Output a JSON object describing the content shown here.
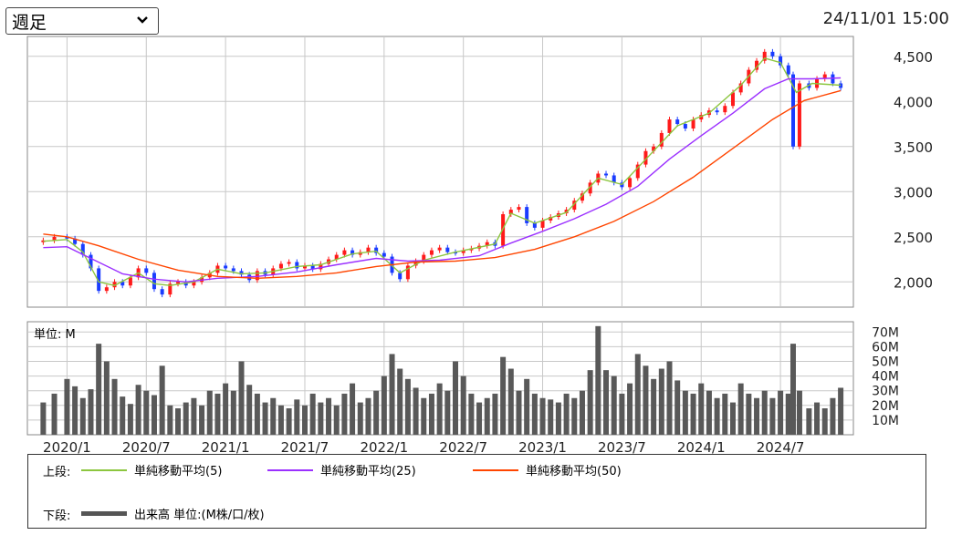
{
  "header": {
    "period_select": "週足",
    "timestamp": "24/11/01 15:00"
  },
  "chart_data": [
    {
      "type": "candlestick",
      "name": "price",
      "yticks": [
        "4,500",
        "4,000",
        "3,500",
        "3,000",
        "2,500",
        "2,000"
      ],
      "yvalues": [
        4500,
        4000,
        3500,
        3000,
        2500,
        2000
      ],
      "ylim": [
        1720,
        4720
      ],
      "xlim": [
        2019.75,
        2024.96
      ],
      "grid": true,
      "close": [
        [
          2019.85,
          2460
        ],
        [
          2019.92,
          2500
        ],
        [
          2020.0,
          2480
        ],
        [
          2020.05,
          2420
        ],
        [
          2020.1,
          2300
        ],
        [
          2020.15,
          2150
        ],
        [
          2020.2,
          1900
        ],
        [
          2020.25,
          1940
        ],
        [
          2020.3,
          2000
        ],
        [
          2020.35,
          1960
        ],
        [
          2020.4,
          2050
        ],
        [
          2020.45,
          2150
        ],
        [
          2020.5,
          2100
        ],
        [
          2020.55,
          1920
        ],
        [
          2020.6,
          1860
        ],
        [
          2020.65,
          1980
        ],
        [
          2020.7,
          2000
        ],
        [
          2020.75,
          1960
        ],
        [
          2020.8,
          2000
        ],
        [
          2020.85,
          2050
        ],
        [
          2020.9,
          2100
        ],
        [
          2020.95,
          2180
        ],
        [
          2021.0,
          2150
        ],
        [
          2021.05,
          2120
        ],
        [
          2021.1,
          2080
        ],
        [
          2021.15,
          2020
        ],
        [
          2021.2,
          2120
        ],
        [
          2021.25,
          2080
        ],
        [
          2021.3,
          2150
        ],
        [
          2021.35,
          2200
        ],
        [
          2021.4,
          2220
        ],
        [
          2021.45,
          2150
        ],
        [
          2021.5,
          2180
        ],
        [
          2021.55,
          2140
        ],
        [
          2021.6,
          2200
        ],
        [
          2021.65,
          2250
        ],
        [
          2021.7,
          2300
        ],
        [
          2021.75,
          2350
        ],
        [
          2021.8,
          2300
        ],
        [
          2021.85,
          2330
        ],
        [
          2021.9,
          2380
        ],
        [
          2021.95,
          2320
        ],
        [
          2022.0,
          2280
        ],
        [
          2022.05,
          2100
        ],
        [
          2022.1,
          2030
        ],
        [
          2022.15,
          2180
        ],
        [
          2022.2,
          2230
        ],
        [
          2022.25,
          2300
        ],
        [
          2022.3,
          2350
        ],
        [
          2022.35,
          2380
        ],
        [
          2022.4,
          2330
        ],
        [
          2022.45,
          2320
        ],
        [
          2022.5,
          2350
        ],
        [
          2022.55,
          2370
        ],
        [
          2022.6,
          2400
        ],
        [
          2022.65,
          2440
        ],
        [
          2022.7,
          2400
        ],
        [
          2022.75,
          2750
        ],
        [
          2022.8,
          2800
        ],
        [
          2022.85,
          2830
        ],
        [
          2022.9,
          2650
        ],
        [
          2022.95,
          2600
        ],
        [
          2023.0,
          2680
        ],
        [
          2023.05,
          2720
        ],
        [
          2023.1,
          2760
        ],
        [
          2023.15,
          2800
        ],
        [
          2023.2,
          2900
        ],
        [
          2023.25,
          2980
        ],
        [
          2023.3,
          3100
        ],
        [
          2023.35,
          3200
        ],
        [
          2023.4,
          3180
        ],
        [
          2023.45,
          3100
        ],
        [
          2023.5,
          3050
        ],
        [
          2023.55,
          3150
        ],
        [
          2023.6,
          3300
        ],
        [
          2023.65,
          3450
        ],
        [
          2023.7,
          3500
        ],
        [
          2023.75,
          3650
        ],
        [
          2023.8,
          3800
        ],
        [
          2023.85,
          3750
        ],
        [
          2023.9,
          3700
        ],
        [
          2023.95,
          3800
        ],
        [
          2024.0,
          3850
        ],
        [
          2024.05,
          3900
        ],
        [
          2024.1,
          3880
        ],
        [
          2024.15,
          3950
        ],
        [
          2024.2,
          4100
        ],
        [
          2024.25,
          4200
        ],
        [
          2024.3,
          4350
        ],
        [
          2024.35,
          4450
        ],
        [
          2024.4,
          4550
        ],
        [
          2024.45,
          4500
        ],
        [
          2024.5,
          4400
        ],
        [
          2024.55,
          4300
        ],
        [
          2024.58,
          3500
        ],
        [
          2024.62,
          4200
        ],
        [
          2024.68,
          4150
        ],
        [
          2024.73,
          4250
        ],
        [
          2024.78,
          4300
        ],
        [
          2024.83,
          4200
        ],
        [
          2024.88,
          4150
        ]
      ],
      "series": [
        {
          "name": "単純移動平均(5)",
          "color": "#8cc63f",
          "points": [
            [
              2019.85,
              2450
            ],
            [
              2020.0,
              2470
            ],
            [
              2020.1,
              2330
            ],
            [
              2020.2,
              2000
            ],
            [
              2020.3,
              1960
            ],
            [
              2020.45,
              2100
            ],
            [
              2020.55,
              1980
            ],
            [
              2020.65,
              1960
            ],
            [
              2020.8,
              2000
            ],
            [
              2020.95,
              2140
            ],
            [
              2021.1,
              2090
            ],
            [
              2021.25,
              2100
            ],
            [
              2021.45,
              2170
            ],
            [
              2021.6,
              2190
            ],
            [
              2021.8,
              2310
            ],
            [
              2021.95,
              2340
            ],
            [
              2022.1,
              2100
            ],
            [
              2022.25,
              2240
            ],
            [
              2022.45,
              2330
            ],
            [
              2022.7,
              2420
            ],
            [
              2022.8,
              2760
            ],
            [
              2022.95,
              2650
            ],
            [
              2023.15,
              2770
            ],
            [
              2023.35,
              3150
            ],
            [
              2023.5,
              3080
            ],
            [
              2023.7,
              3450
            ],
            [
              2023.85,
              3730
            ],
            [
              2024.05,
              3870
            ],
            [
              2024.25,
              4180
            ],
            [
              2024.4,
              4480
            ],
            [
              2024.5,
              4430
            ],
            [
              2024.6,
              4100
            ],
            [
              2024.7,
              4200
            ],
            [
              2024.88,
              4180
            ]
          ]
        },
        {
          "name": "単純移動平均(25)",
          "color": "#9b30ff",
          "points": [
            [
              2019.85,
              2380
            ],
            [
              2020.0,
              2390
            ],
            [
              2020.15,
              2260
            ],
            [
              2020.35,
              2090
            ],
            [
              2020.55,
              2030
            ],
            [
              2020.75,
              2000
            ],
            [
              2020.95,
              2040
            ],
            [
              2021.2,
              2060
            ],
            [
              2021.45,
              2110
            ],
            [
              2021.7,
              2190
            ],
            [
              2021.95,
              2260
            ],
            [
              2022.15,
              2230
            ],
            [
              2022.35,
              2240
            ],
            [
              2022.6,
              2290
            ],
            [
              2022.8,
              2430
            ],
            [
              2023.0,
              2560
            ],
            [
              2023.2,
              2700
            ],
            [
              2023.4,
              2860
            ],
            [
              2023.6,
              3060
            ],
            [
              2023.8,
              3360
            ],
            [
              2024.0,
              3620
            ],
            [
              2024.2,
              3870
            ],
            [
              2024.4,
              4140
            ],
            [
              2024.55,
              4250
            ],
            [
              2024.7,
              4250
            ],
            [
              2024.88,
              4260
            ]
          ]
        },
        {
          "name": "単純移動平均(50)",
          "color": "#ff4500",
          "points": [
            [
              2019.85,
              2530
            ],
            [
              2020.0,
              2500
            ],
            [
              2020.2,
              2400
            ],
            [
              2020.45,
              2250
            ],
            [
              2020.7,
              2130
            ],
            [
              2020.95,
              2060
            ],
            [
              2021.2,
              2040
            ],
            [
              2021.45,
              2060
            ],
            [
              2021.7,
              2100
            ],
            [
              2021.95,
              2170
            ],
            [
              2022.2,
              2220
            ],
            [
              2022.45,
              2230
            ],
            [
              2022.7,
              2270
            ],
            [
              2022.95,
              2360
            ],
            [
              2023.2,
              2500
            ],
            [
              2023.45,
              2670
            ],
            [
              2023.7,
              2890
            ],
            [
              2023.95,
              3160
            ],
            [
              2024.2,
              3480
            ],
            [
              2024.45,
              3800
            ],
            [
              2024.65,
              4010
            ],
            [
              2024.88,
              4120
            ]
          ]
        }
      ]
    },
    {
      "type": "bar",
      "name": "volume",
      "unit_label": "単位: M",
      "yticks": [
        "70M",
        "60M",
        "50M",
        "40M",
        "30M",
        "20M",
        "10M"
      ],
      "yvalues": [
        70,
        60,
        50,
        40,
        30,
        20,
        10
      ],
      "ylim": [
        0,
        77
      ],
      "xticks": [
        "2020/1",
        "2020/7",
        "2021/1",
        "2021/7",
        "2022/1",
        "2022/7",
        "2023/1",
        "2023/7",
        "2024/1",
        "2024/7"
      ],
      "xvalues": [
        2020.0,
        2020.5,
        2021.0,
        2021.5,
        2022.0,
        2022.5,
        2023.0,
        2023.5,
        2024.0,
        2024.5
      ],
      "values": [
        [
          2019.85,
          22
        ],
        [
          2019.92,
          28
        ],
        [
          2020.0,
          38
        ],
        [
          2020.05,
          33
        ],
        [
          2020.1,
          25
        ],
        [
          2020.15,
          31
        ],
        [
          2020.2,
          62
        ],
        [
          2020.25,
          50
        ],
        [
          2020.3,
          38
        ],
        [
          2020.35,
          26
        ],
        [
          2020.4,
          21
        ],
        [
          2020.45,
          34
        ],
        [
          2020.5,
          30
        ],
        [
          2020.55,
          27
        ],
        [
          2020.6,
          47
        ],
        [
          2020.65,
          20
        ],
        [
          2020.7,
          18
        ],
        [
          2020.75,
          22
        ],
        [
          2020.8,
          25
        ],
        [
          2020.85,
          20
        ],
        [
          2020.9,
          30
        ],
        [
          2020.95,
          28
        ],
        [
          2021.0,
          35
        ],
        [
          2021.05,
          30
        ],
        [
          2021.1,
          50
        ],
        [
          2021.15,
          34
        ],
        [
          2021.2,
          28
        ],
        [
          2021.25,
          22
        ],
        [
          2021.3,
          25
        ],
        [
          2021.35,
          20
        ],
        [
          2021.4,
          18
        ],
        [
          2021.45,
          24
        ],
        [
          2021.5,
          20
        ],
        [
          2021.55,
          28
        ],
        [
          2021.6,
          22
        ],
        [
          2021.65,
          25
        ],
        [
          2021.7,
          20
        ],
        [
          2021.75,
          28
        ],
        [
          2021.8,
          35
        ],
        [
          2021.85,
          22
        ],
        [
          2021.9,
          25
        ],
        [
          2021.95,
          30
        ],
        [
          2022.0,
          40
        ],
        [
          2022.05,
          55
        ],
        [
          2022.1,
          45
        ],
        [
          2022.15,
          38
        ],
        [
          2022.2,
          32
        ],
        [
          2022.25,
          25
        ],
        [
          2022.3,
          28
        ],
        [
          2022.35,
          35
        ],
        [
          2022.4,
          30
        ],
        [
          2022.45,
          50
        ],
        [
          2022.5,
          40
        ],
        [
          2022.55,
          28
        ],
        [
          2022.6,
          22
        ],
        [
          2022.65,
          25
        ],
        [
          2022.7,
          28
        ],
        [
          2022.75,
          53
        ],
        [
          2022.8,
          45
        ],
        [
          2022.85,
          30
        ],
        [
          2022.9,
          38
        ],
        [
          2022.95,
          28
        ],
        [
          2023.0,
          25
        ],
        [
          2023.05,
          24
        ],
        [
          2023.1,
          22
        ],
        [
          2023.15,
          28
        ],
        [
          2023.2,
          25
        ],
        [
          2023.25,
          30
        ],
        [
          2023.3,
          44
        ],
        [
          2023.35,
          74
        ],
        [
          2023.4,
          44
        ],
        [
          2023.45,
          40
        ],
        [
          2023.5,
          28
        ],
        [
          2023.55,
          35
        ],
        [
          2023.6,
          55
        ],
        [
          2023.65,
          47
        ],
        [
          2023.7,
          38
        ],
        [
          2023.75,
          45
        ],
        [
          2023.8,
          50
        ],
        [
          2023.85,
          37
        ],
        [
          2023.9,
          30
        ],
        [
          2023.95,
          28
        ],
        [
          2024.0,
          35
        ],
        [
          2024.05,
          30
        ],
        [
          2024.1,
          25
        ],
        [
          2024.15,
          28
        ],
        [
          2024.2,
          22
        ],
        [
          2024.25,
          35
        ],
        [
          2024.3,
          28
        ],
        [
          2024.35,
          25
        ],
        [
          2024.4,
          30
        ],
        [
          2024.45,
          25
        ],
        [
          2024.5,
          30
        ],
        [
          2024.55,
          28
        ],
        [
          2024.58,
          62
        ],
        [
          2024.62,
          30
        ],
        [
          2024.68,
          18
        ],
        [
          2024.73,
          22
        ],
        [
          2024.78,
          18
        ],
        [
          2024.83,
          25
        ],
        [
          2024.88,
          32
        ]
      ]
    }
  ],
  "legend": {
    "upper_label": "上段:",
    "lower_label": "下段:",
    "items": [
      {
        "text": "単純移動平均(5)",
        "color": "#8cc63f"
      },
      {
        "text": "単純移動平均(25)",
        "color": "#9b30ff"
      },
      {
        "text": "単純移動平均(50)",
        "color": "#ff4500"
      }
    ],
    "volume_text": "出来高 単位:(M株/口/枚)",
    "volume_color": "#555555"
  }
}
